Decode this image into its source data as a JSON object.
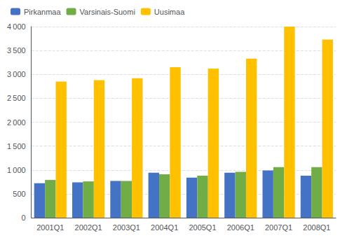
{
  "chart_data": {
    "type": "bar",
    "categories": [
      "2001Q1",
      "2002Q1",
      "2003Q1",
      "2004Q1",
      "2005Q1",
      "2006Q1",
      "2007Q1",
      "2008Q1"
    ],
    "series": [
      {
        "name": "Pirkanmaa",
        "color": "#4472c4",
        "values": [
          720,
          740,
          770,
          940,
          840,
          940,
          990,
          880
        ]
      },
      {
        "name": "Varsinais-Suomi",
        "color": "#70ad47",
        "values": [
          790,
          760,
          770,
          910,
          880,
          960,
          1060,
          1060
        ]
      },
      {
        "name": "Uusimaa",
        "color": "#ffc000",
        "values": [
          2850,
          2880,
          2920,
          3150,
          3120,
          3330,
          4000,
          3730
        ]
      }
    ],
    "ylim": [
      0,
      4000
    ],
    "yticks": [
      0,
      500,
      {
        "value": 1000,
        "label": "1 000"
      },
      {
        "value": 1500,
        "label": "1 500"
      },
      {
        "value": 2000,
        "label": "2 000"
      },
      {
        "value": 2500,
        "label": "2 500"
      },
      {
        "value": 3000,
        "label": "3 000"
      },
      {
        "value": 3500,
        "label": "3 500"
      },
      {
        "value": 4000,
        "label": "4 000"
      }
    ],
    "grid": true,
    "legend": "upper left"
  }
}
